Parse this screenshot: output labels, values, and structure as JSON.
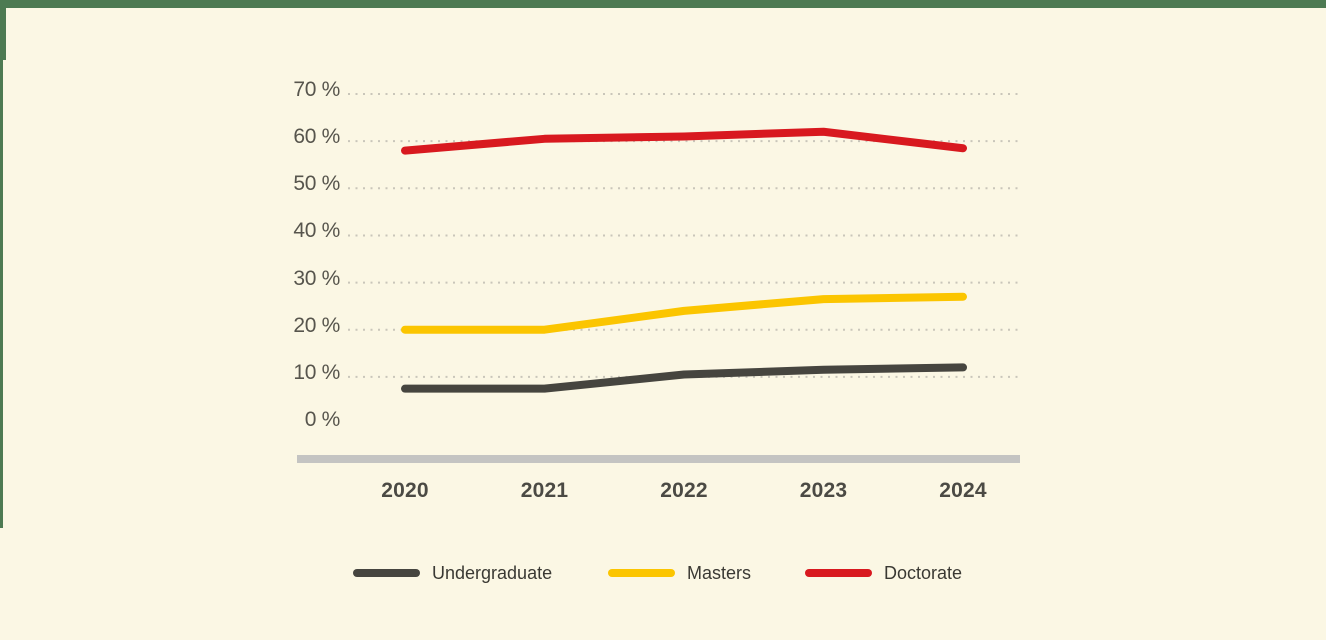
{
  "colors": {
    "background": "#fbf7e4",
    "frame_green": "#4d7a52",
    "grid_dots": "#c9c6ba",
    "axis_bar": "#c4c4c2",
    "ytick_text": "#57554d",
    "xtick_text": "#4b4a44",
    "legend_text": "#3a3933"
  },
  "chart_data": {
    "type": "line",
    "categories": [
      "2020",
      "2021",
      "2022",
      "2023",
      "2024"
    ],
    "series": [
      {
        "name": "Undergraduate",
        "color": "#46453f",
        "values": [
          7.5,
          7.5,
          10.5,
          11.5,
          12
        ]
      },
      {
        "name": "Masters",
        "color": "#fbc500",
        "values": [
          20,
          20,
          24,
          26.5,
          27
        ]
      },
      {
        "name": "Doctorate",
        "color": "#d8191f",
        "values": [
          58,
          60.5,
          61,
          62,
          58.5
        ]
      }
    ],
    "title": "",
    "xlabel": "",
    "ylabel": "",
    "ylim": [
      0,
      70
    ],
    "yticks": [
      0,
      10,
      20,
      30,
      40,
      50,
      60,
      70
    ],
    "ytick_suffix": " %",
    "grid": "horizontal-dotted",
    "gridlines_for_zero": false,
    "legend_position": "bottom",
    "legend_entries": [
      "Undergraduate",
      "Masters",
      "Doctorate"
    ]
  }
}
